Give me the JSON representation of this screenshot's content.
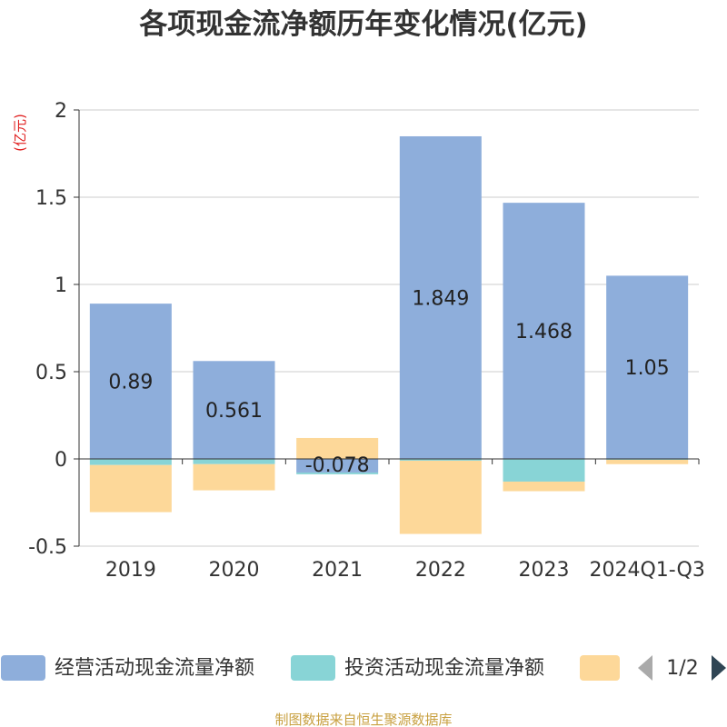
{
  "chart_data": {
    "type": "bar",
    "stacked": true,
    "title": "各项现金流净额历年变化情况(亿元)",
    "unit": "(亿元)",
    "categories": [
      "2019",
      "2020",
      "2021",
      "2022",
      "2023",
      "2024Q1-Q3"
    ],
    "ylim": [
      -0.5,
      2
    ],
    "yticks": [
      2,
      1.5,
      1,
      0.5,
      0,
      -0.5
    ],
    "ytick_labels": [
      "2",
      "1.5",
      "1",
      "0.5",
      "0",
      "-0.5"
    ],
    "grid": true,
    "legend_position": "bottom",
    "series": [
      {
        "name": "经营活动现金流量净额",
        "color": "#8eaedb",
        "values": [
          0.89,
          0.561,
          -0.078,
          1.849,
          1.468,
          1.05
        ],
        "labels": [
          "0.89",
          "0.561",
          "-0.078",
          "1.849",
          "1.468",
          "1.05"
        ]
      },
      {
        "name": "投资活动现金流量净额",
        "color": "#88d4d6",
        "values": [
          -0.035,
          -0.03,
          -0.01,
          -0.01,
          -0.13,
          -0.005
        ]
      },
      {
        "name": "",
        "color": "#fdd899",
        "values": [
          -0.27,
          -0.15,
          0.12,
          -0.42,
          -0.055,
          -0.025
        ]
      }
    ],
    "legend": {
      "page": "1/2"
    },
    "source": "制图数据来自恒生聚源数据库"
  }
}
